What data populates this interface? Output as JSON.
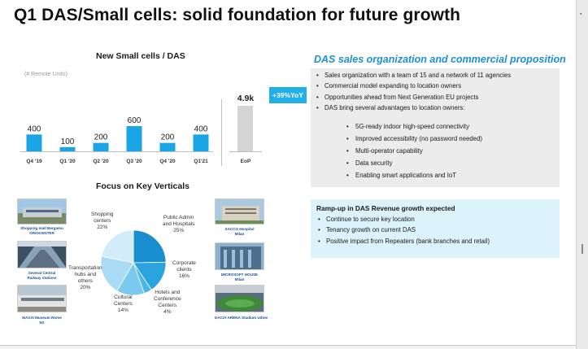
{
  "title": "Q1 DAS/Small cells: solid foundation for future growth",
  "chart_data": [
    {
      "type": "bar",
      "title": "New Small cells / DAS",
      "subtitle": "(# Remote Units)",
      "categories": [
        "Q4 '19",
        "Q1 '20",
        "Q2 '20",
        "Q3 '20",
        "Q4 '20",
        "Q1'21"
      ],
      "values": [
        400,
        100,
        200,
        600,
        200,
        400
      ],
      "value_labels": [
        "400",
        "100",
        "200",
        "600",
        "200",
        "400"
      ],
      "color": "#1aa5e6",
      "eop": {
        "category": "EoP",
        "value_label": "4.9k",
        "color": "#d4d4d4"
      },
      "yoy_badge": "+39%YoY"
    },
    {
      "type": "pie",
      "title": "Focus on Key Verticals",
      "slices": [
        {
          "name": "Public Admin and Hospitals",
          "value": 25,
          "label": "25%",
          "color": "#1a8fcf"
        },
        {
          "name": "Corporate clients",
          "value": 16,
          "label": "16%",
          "color": "#2aa3de"
        },
        {
          "name": "Hotels and Conference Centers",
          "value": 4,
          "label": "4%",
          "color": "#4cb6e8"
        },
        {
          "name": "Cultural Centers",
          "value": 14,
          "label": "14%",
          "color": "#7cc9ef"
        },
        {
          "name": "Transportation hubs and others",
          "value": 20,
          "label": "20%",
          "color": "#a9dbf5"
        },
        {
          "name": "Shopping centers",
          "value": 22,
          "label": "22%",
          "color": "#d3ecfa"
        }
      ]
    }
  ],
  "pie_labels": {
    "shopping": [
      "Shopping",
      "centers",
      "22%"
    ],
    "public": [
      "Public Admin",
      "and Hospitals",
      "25%"
    ],
    "corporate": [
      "Corporate",
      "clients",
      "16%"
    ],
    "hotels": [
      "Hotels and",
      "Conference",
      "Centers",
      "4%"
    ],
    "cultural": [
      "Cultural",
      "Centers",
      "14%"
    ],
    "transport": [
      "Transportation",
      "hubs and",
      "others",
      "20%"
    ]
  },
  "photos": [
    {
      "caption": [
        "Shopping mall Bergamo",
        "ORIOCENTER"
      ]
    },
    {
      "caption": [
        "Several Central",
        "Railway stations"
      ]
    },
    {
      "caption": [
        "MAXXI Museum Rome",
        "5G"
      ]
    },
    {
      "caption": [
        "SACCO Hospital",
        "Milan"
      ]
    },
    {
      "caption": [
        "MICROSOFT HOUSE",
        "Milan"
      ]
    },
    {
      "caption": [
        "DACIA ARENA Stadium Udine"
      ]
    }
  ],
  "right": {
    "title": "DAS sales organization and commercial proposition",
    "bullets": [
      "Sales organization with a team of 15 and a network of 11 agencies",
      "Commercial model expanding to location owners",
      "Opportunities ahead from Next Generation EU projects",
      "DAS bring several advantages to location owners:"
    ],
    "sub_bullets": [
      "5G-ready indoor high-speed connectivity",
      "Improved accessibility (no password needed)",
      "Multi-operator capability",
      "Data security",
      "Enabling smart applications and IoT"
    ],
    "box2_title": "Ramp-up in DAS Revenue growth expected",
    "box2_bullets": [
      "Continue to secure key location",
      "Tenancy growth on current DAS",
      "Positive impact from Repeaters (bank branches and retail)"
    ]
  }
}
